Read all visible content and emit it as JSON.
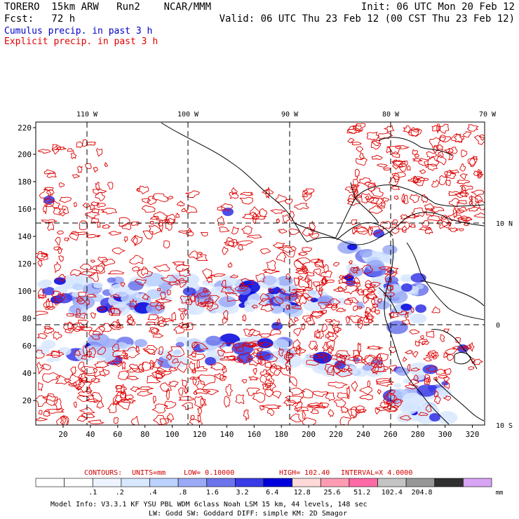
{
  "header": {
    "model": "TORERO  15km ARW   Run2    NCAR/MMM",
    "init": "Init: 06 UTC Mon 20 Feb 12",
    "fcst": "Fcst:   72 h",
    "valid": "Valid: 06 UTC Thu 23 Feb 12 (00 CST Thu 23 Feb 12)",
    "cumulus_label": "Cumulus precip. in past 3 h",
    "explicit_label": "Explicit precip. in past 3 h",
    "cumulus_color": "#0000c8",
    "explicit_color": "#e00000"
  },
  "map": {
    "lon_labels": [
      "110 W",
      "100 W",
      "90 W",
      "80 W",
      "70 W"
    ],
    "lat_labels": [
      "10 N",
      "0",
      "10 S"
    ],
    "y_ticks": [
      "220",
      "200",
      "180",
      "160",
      "140",
      "120",
      "100",
      "80",
      "60",
      "40",
      "20"
    ],
    "x_ticks": [
      "20",
      "40",
      "60",
      "80",
      "100",
      "120",
      "140",
      "160",
      "180",
      "200",
      "220",
      "240",
      "260",
      "280",
      "300",
      "320"
    ],
    "contour_color": "#dd0000",
    "coast_color": "#000000"
  },
  "contour_info": {
    "contours": "CONTOURS:",
    "units": "UNITS=mm",
    "low": "LOW= 0.10000",
    "high": "HIGH=  102.40",
    "interval": "INTERVAL=X  4.0000"
  },
  "colorbar": {
    "colors": [
      "#ffffff",
      "#ffffff",
      "#eef4ff",
      "#d8e8ff",
      "#bcd2ff",
      "#9aaaf6",
      "#6c74ec",
      "#3a3ae6",
      "#0000dc",
      "#ffd8d8",
      "#ff9cb4",
      "#ff6aa6",
      "#c4c4c4",
      "#969696",
      "#303030",
      "#d8a4f4"
    ],
    "labels": [
      ".1",
      ".2",
      ".4",
      ".8",
      "1.6",
      "3.2",
      "6.4",
      "12.8",
      "25.6",
      "51.2",
      "102.4",
      "204.8"
    ],
    "unit": "mm"
  },
  "footer": {
    "line1": "Model Info: V3.3.1    KF     YSU PBL  WDM 6class  Noah LSM  15 km,    44 levels,  148 sec",
    "line2": "LW: Godd SW: Goddard DIFF: simple KM: 2D Smagor"
  }
}
